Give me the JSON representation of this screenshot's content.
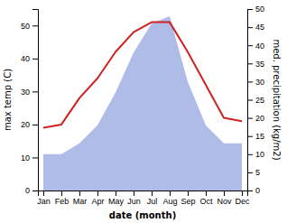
{
  "chart_data": {
    "type": "line",
    "categories": [
      "Jan",
      "Feb",
      "Mar",
      "Apr",
      "May",
      "Jun",
      "Jul",
      "Aug",
      "Sep",
      "Oct",
      "Nov",
      "Dec"
    ],
    "xlabel": "date (month)",
    "ylabel": "max temp (C)",
    "y2label": "med. precipitation (kg/m2)",
    "ylim": [
      0,
      55
    ],
    "yticks": [
      0,
      10,
      20,
      30,
      40,
      50
    ],
    "y2lim": [
      0,
      50
    ],
    "y2ticks": [
      0,
      5,
      10,
      15,
      20,
      25,
      30,
      35,
      40,
      45,
      50
    ],
    "series": [
      {
        "type": "area",
        "axis": "y2",
        "color": "#b0bce8",
        "values": [
          10,
          10,
          13,
          18,
          27,
          38,
          46,
          48,
          30,
          18,
          13,
          13
        ]
      },
      {
        "type": "line",
        "color": "#cc2222",
        "values": [
          19,
          20,
          28,
          34,
          42,
          48,
          51,
          51,
          42,
          32,
          22,
          21
        ]
      }
    ]
  }
}
